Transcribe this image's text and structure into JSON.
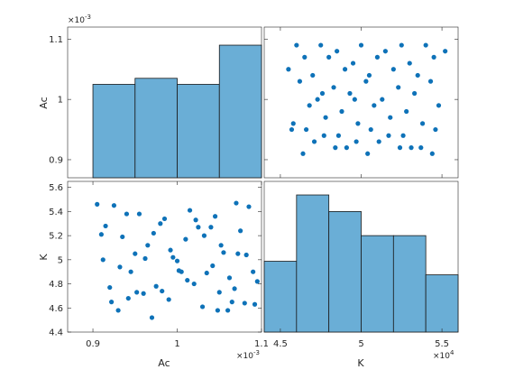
{
  "chart_data": [
    {
      "type": "histogram",
      "panel": "top-left",
      "variable": "Ac",
      "xlim": [
        0.00087,
        0.0011
      ],
      "ylim": [
        0.00087,
        0.00112
      ],
      "edges": [
        0.0009,
        0.00095,
        0.001,
        0.00105,
        0.0011
      ],
      "relative_heights": [
        0.62,
        0.66,
        0.62,
        0.88
      ],
      "ytick_labels": [
        "0.9",
        "1",
        "1.1"
      ],
      "ytick_values": [
        0.0009,
        0.001,
        0.0011
      ],
      "ylabel": "Ac",
      "exponent_label": "×10^-3"
    },
    {
      "type": "scatter",
      "panel": "top-right",
      "x_variable": "K",
      "y_variable": "Ac",
      "xlim": [
        44000,
        56000
      ],
      "ylim": [
        0.00087,
        0.00112
      ],
      "xtick_values": [
        45000,
        50000,
        55000
      ],
      "ytick_values": [
        0.0009,
        0.001,
        0.0011
      ],
      "x": [
        46000,
        47500,
        48500,
        50000,
        51500,
        52500,
        54000,
        55200,
        46500,
        48000,
        49500,
        51000,
        53000,
        54500,
        45500,
        47000,
        49000,
        50500,
        52000,
        53500,
        46200,
        48300,
        50300,
        52300,
        54300,
        47300,
        49300,
        51300,
        53300,
        46800,
        48800,
        50800,
        52800,
        54800,
        45800,
        47800,
        49800,
        51800,
        53800,
        46600,
        48600,
        50600,
        52600,
        54600,
        47100,
        49100,
        51100,
        53100,
        45700,
        47700,
        49700,
        51700,
        53700,
        46400,
        48400,
        50400,
        52400,
        54400,
        47600,
        49600
      ],
      "y": [
        0.00109,
        0.00109,
        0.00108,
        0.00109,
        0.00108,
        0.00109,
        0.00109,
        0.00108,
        0.00107,
        0.00107,
        0.00106,
        0.00107,
        0.00106,
        0.00107,
        0.00105,
        0.00104,
        0.00105,
        0.00104,
        0.00105,
        0.00104,
        0.00103,
        0.00102,
        0.00103,
        0.00102,
        0.00103,
        0.001,
        0.00101,
        0.001,
        0.00101,
        0.00099,
        0.00098,
        0.00099,
        0.00098,
        0.00099,
        0.00096,
        0.00097,
        0.00096,
        0.00097,
        0.00096,
        0.00095,
        0.00094,
        0.00095,
        0.00094,
        0.00095,
        0.00093,
        0.00092,
        0.00093,
        0.00092,
        0.00095,
        0.00094,
        0.00093,
        0.00094,
        0.00092,
        0.00091,
        0.00092,
        0.00091,
        0.00092,
        0.00091,
        0.00101,
        0.001
      ]
    },
    {
      "type": "scatter",
      "panel": "bottom-left",
      "x_variable": "Ac",
      "y_variable": "K",
      "xlim": [
        0.00087,
        0.0011
      ],
      "ylim": [
        44000,
        56500
      ],
      "xtick_values": [
        0.0009,
        0.001,
        0.0011
      ],
      "xtick_labels": [
        "0.9",
        "1",
        "1.1"
      ],
      "ytick_values": [
        44000,
        46000,
        48000,
        50000,
        52000,
        54000,
        56000
      ],
      "ytick_labels": [
        "4.4",
        "4.6",
        "4.8",
        "5",
        "5.2",
        "5.4",
        "5.6"
      ],
      "xlabel": "Ac",
      "ylabel": "K",
      "x_exponent_label": "×10^-3",
      "x": [
        0.000905,
        0.000915,
        0.000925,
        0.000935,
        0.000945,
        0.000955,
        0.000965,
        0.000975,
        0.000985,
        0.000995,
        0.001005,
        0.001015,
        0.001025,
        0.001035,
        0.001045,
        0.001055,
        0.001065,
        0.001075,
        0.001085,
        0.001095,
        0.00091,
        0.00092,
        0.00093,
        0.00094,
        0.00095,
        0.00096,
        0.00097,
        0.00098,
        0.00099,
        0.001,
        0.00101,
        0.00102,
        0.00103,
        0.00104,
        0.00105,
        0.00106,
        0.00107,
        0.00108,
        0.00109,
        0.000912,
        0.000932,
        0.000952,
        0.000972,
        0.000992,
        0.001012,
        0.001032,
        0.001052,
        0.001072,
        0.001092,
        0.000942,
        0.000962,
        0.000982,
        0.001002,
        0.001022,
        0.001042,
        0.001062,
        0.001082,
        0.000922,
        0.001048,
        0.001068
      ],
      "y": [
        54600,
        52800,
        54500,
        51900,
        49000,
        53800,
        51200,
        47800,
        53400,
        50200,
        49000,
        54100,
        52700,
        48900,
        53600,
        50600,
        46500,
        52400,
        54400,
        48200,
        52100,
        47700,
        45800,
        53800,
        50500,
        47200,
        45200,
        53000,
        46700,
        49900,
        51700,
        48000,
        46100,
        52700,
        47300,
        45800,
        54700,
        46400,
        49000,
        50000,
        49400,
        47300,
        52200,
        50800,
        48300,
        52000,
        51200,
        50500,
        46300,
        46800,
        50100,
        47400,
        49100,
        53300,
        49500,
        48500,
        50400,
        46500,
        45800,
        47600
      ]
    },
    {
      "type": "histogram",
      "panel": "bottom-right",
      "variable": "K",
      "xlim": [
        44000,
        56000
      ],
      "edges": [
        44000,
        46000,
        48000,
        50000,
        52000,
        54000,
        56000
      ],
      "relative_heights": [
        0.47,
        0.91,
        0.8,
        0.64,
        0.64,
        0.38
      ],
      "xtick_values": [
        45000,
        50000,
        55000
      ],
      "xtick_labels": [
        "4.5",
        "5",
        "5.5"
      ],
      "xlabel": "K",
      "x_exponent_label": "×10^4"
    }
  ]
}
